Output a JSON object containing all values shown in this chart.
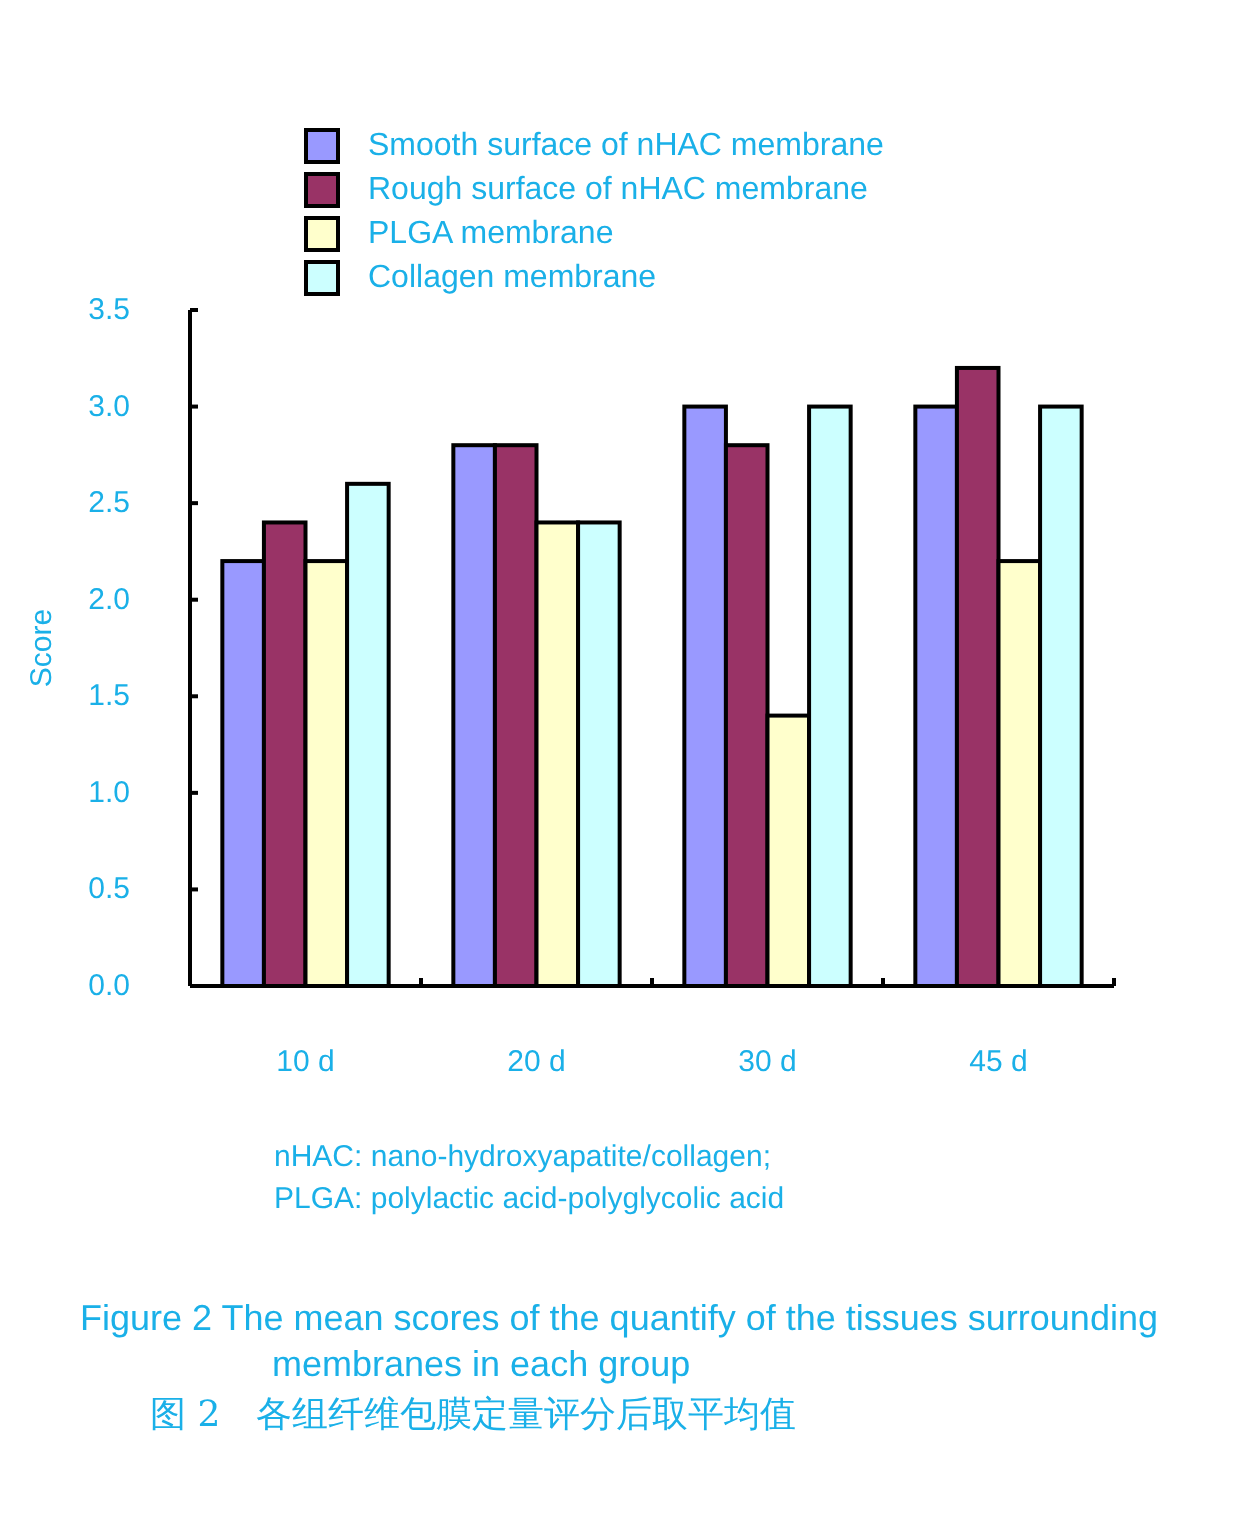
{
  "chart_data": {
    "type": "bar",
    "title": "Figure 2   The mean scores of the quantify of the tissues surrounding membranes in each group",
    "subtitle": "图 2　各组纤维包膜定量评分后取平均值",
    "ylabel": "Score",
    "categories": [
      "10 d",
      "20 d",
      "30 d",
      "45 d"
    ],
    "series": [
      {
        "name": "Smooth surface of nHAC membrane",
        "color": "#9999ff",
        "values": [
          2.2,
          2.8,
          3.0,
          3.0
        ]
      },
      {
        "name": "Rough surface of nHAC membrane",
        "color": "#993366",
        "values": [
          2.4,
          2.8,
          2.8,
          3.2
        ]
      },
      {
        "name": "PLGA membrane",
        "color": "#ffffcc",
        "values": [
          2.2,
          2.4,
          1.4,
          2.2
        ]
      },
      {
        "name": "Collagen membrane",
        "color": "#ccffff",
        "values": [
          2.6,
          2.4,
          3.0,
          3.0
        ]
      }
    ],
    "ylim": [
      0,
      3.5
    ],
    "yticks": [
      {
        "value": 0,
        "label": "0.0"
      },
      {
        "value": 0.5,
        "label": "0.5"
      },
      {
        "value": 1,
        "label": "1.0"
      },
      {
        "value": 1.5,
        "label": "1.5"
      },
      {
        "value": 2,
        "label": "2.0"
      },
      {
        "value": 2.5,
        "label": "2.5"
      },
      {
        "value": 3,
        "label": "3.0"
      },
      {
        "value": 3.5,
        "label": "3.5"
      }
    ],
    "grid": false,
    "legend": "top",
    "annotations": [
      "nHAC: nano-hydroxyapatite/collagen;",
      "PLGA: polylactic acid-polyglycolic acid"
    ]
  }
}
